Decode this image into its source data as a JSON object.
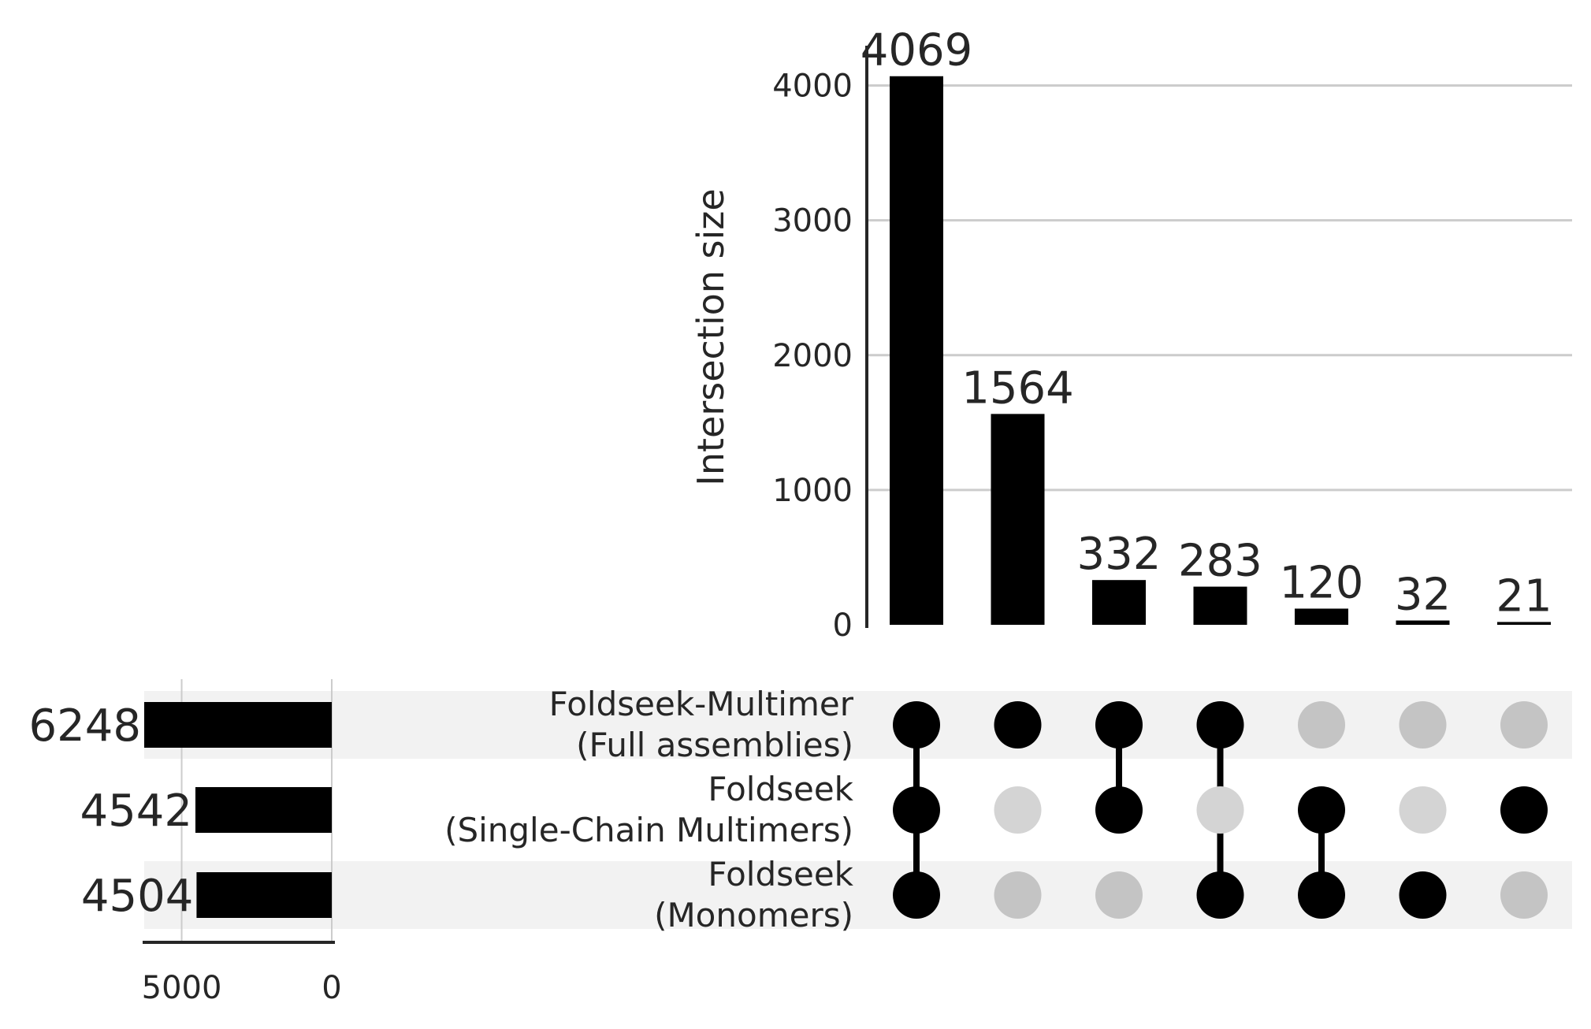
{
  "chart_data": {
    "type": "upset",
    "ylabel": "Intersection size",
    "y_ticks": [
      0,
      1000,
      2000,
      3000,
      4000
    ],
    "ylim": [
      0,
      4272
    ],
    "sets": [
      {
        "name": "Foldseek-Multimer\n(Full assemblies)",
        "lines": [
          "Foldseek-Multimer",
          "(Full assemblies)"
        ],
        "size": 6248
      },
      {
        "name": "Foldseek\n(Single-Chain Multimers)",
        "lines": [
          "Foldseek",
          "(Single-Chain Multimers)"
        ],
        "size": 4542
      },
      {
        "name": "Foldseek\n(Monomers)",
        "lines": [
          "Foldseek",
          "(Monomers)"
        ],
        "size": 4504
      }
    ],
    "set_size_ticks": [
      5000,
      0
    ],
    "set_size_xlim": [
      6248,
      0
    ],
    "intersections": [
      {
        "value": 4069,
        "members": [
          0,
          1,
          2
        ]
      },
      {
        "value": 1564,
        "members": [
          0
        ]
      },
      {
        "value": 332,
        "members": [
          0,
          1
        ]
      },
      {
        "value": 283,
        "members": [
          0,
          2
        ]
      },
      {
        "value": 120,
        "members": [
          1,
          2
        ]
      },
      {
        "value": 32,
        "members": [
          2
        ]
      },
      {
        "value": 21,
        "members": [
          1
        ]
      }
    ],
    "colors": {
      "bar": "#000000",
      "dot_active": "#000000",
      "dot_inactive_shaded": "#c4c4c4",
      "dot_inactive_plain": "#d4d4d4",
      "row_shade": "#f2f2f2",
      "grid": "#cccccc",
      "text": "#262626",
      "axis": "#262626"
    }
  }
}
